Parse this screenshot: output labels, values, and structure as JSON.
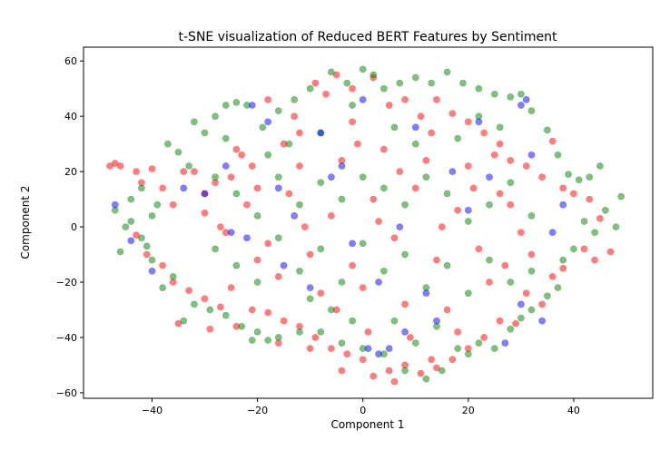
{
  "chart_data": {
    "type": "scatter",
    "title": "t-SNE visualization of Reduced BERT Features by Sentiment",
    "xlabel": "Component 1",
    "ylabel": "Component 2",
    "xlim": [
      -53,
      55
    ],
    "ylim": [
      -62,
      65
    ],
    "xticks": [
      -40,
      -20,
      0,
      20,
      40
    ],
    "yticks": [
      -60,
      -40,
      -20,
      0,
      20,
      40,
      60
    ],
    "grid": false,
    "legend": "none",
    "marker_alpha": 0.5,
    "series": [
      {
        "color": "#ff0000",
        "points": [
          [
            -48,
            22
          ],
          [
            -47,
            23
          ],
          [
            -46,
            22
          ],
          [
            -43,
            20
          ],
          [
            -42,
            16
          ],
          [
            -40,
            21
          ],
          [
            -38,
            14
          ],
          [
            -36,
            8
          ],
          [
            -34,
            20
          ],
          [
            -32,
            20
          ],
          [
            -30,
            12
          ],
          [
            -28,
            16
          ],
          [
            -25,
            18
          ],
          [
            -23,
            26
          ],
          [
            -21,
            22
          ],
          [
            -18,
            46
          ],
          [
            -15,
            30
          ],
          [
            -12,
            34
          ],
          [
            -9,
            52
          ],
          [
            -7,
            48
          ],
          [
            -5,
            55
          ],
          [
            -2,
            50
          ],
          [
            2,
            54
          ],
          [
            5,
            44
          ],
          [
            8,
            46
          ],
          [
            11,
            40
          ],
          [
            14,
            46
          ],
          [
            17,
            41
          ],
          [
            20,
            38
          ],
          [
            23,
            34
          ],
          [
            26,
            30
          ],
          [
            28,
            24
          ],
          [
            31,
            22
          ],
          [
            34,
            18
          ],
          [
            36,
            31
          ],
          [
            38,
            14
          ],
          [
            40,
            12
          ],
          [
            43,
            10
          ],
          [
            45,
            3
          ],
          [
            47,
            -9
          ],
          [
            44,
            -12
          ],
          [
            42,
            -8
          ],
          [
            38,
            -15
          ],
          [
            36,
            -18
          ],
          [
            34,
            -28
          ],
          [
            31,
            -24
          ],
          [
            29,
            -35
          ],
          [
            26,
            -34
          ],
          [
            23,
            -40
          ],
          [
            20,
            -44
          ],
          [
            17,
            -48
          ],
          [
            14,
            -51
          ],
          [
            11,
            -53
          ],
          [
            8,
            -50
          ],
          [
            5,
            -52
          ],
          [
            2,
            -54
          ],
          [
            0,
            -48
          ],
          [
            -3,
            -46
          ],
          [
            -6,
            -44
          ],
          [
            -9,
            -40
          ],
          [
            -12,
            -36
          ],
          [
            -15,
            -34
          ],
          [
            -18,
            -31
          ],
          [
            -21,
            -30
          ],
          [
            -24,
            -36
          ],
          [
            -27,
            -29
          ],
          [
            -30,
            -26
          ],
          [
            -33,
            -23
          ],
          [
            -36,
            -20
          ],
          [
            -38,
            -14
          ],
          [
            -41,
            -10
          ],
          [
            -43,
            -3
          ],
          [
            -35,
            -35
          ],
          [
            -29,
            -37
          ],
          [
            -16,
            -42
          ],
          [
            -10,
            -44
          ],
          [
            -4,
            -52
          ],
          [
            6,
            -56
          ],
          [
            13,
            -48
          ],
          [
            18,
            -38
          ],
          [
            -30,
            5
          ],
          [
            -26,
            -2
          ],
          [
            -22,
            8
          ],
          [
            -18,
            -6
          ],
          [
            -14,
            12
          ],
          [
            -10,
            -10
          ],
          [
            -6,
            4
          ],
          [
            -2,
            -14
          ],
          [
            2,
            10
          ],
          [
            6,
            -4
          ],
          [
            10,
            14
          ],
          [
            14,
            -12
          ],
          [
            18,
            6
          ],
          [
            22,
            -8
          ],
          [
            26,
            12
          ],
          [
            30,
            -2
          ],
          [
            -24,
            28
          ],
          [
            -20,
            14
          ],
          [
            -16,
            -18
          ],
          [
            -12,
            22
          ],
          [
            -8,
            -24
          ],
          [
            -4,
            24
          ],
          [
            0,
            -22
          ],
          [
            4,
            28
          ],
          [
            8,
            -28
          ],
          [
            12,
            24
          ],
          [
            16,
            -30
          ],
          [
            20,
            22
          ],
          [
            24,
            -20
          ],
          [
            28,
            8
          ],
          [
            32,
            -10
          ],
          [
            -2,
            38
          ],
          [
            3,
            2
          ],
          [
            -5,
            -30
          ],
          [
            7,
            20
          ],
          [
            -11,
            0
          ],
          [
            15,
            0
          ],
          [
            -20,
            -12
          ],
          [
            21,
            14
          ],
          [
            -27,
            0
          ],
          [
            27,
            -14
          ],
          [
            1,
            -38
          ],
          [
            -1,
            30
          ],
          [
            9,
            -40
          ],
          [
            -13,
            40
          ],
          [
            13,
            34
          ],
          [
            -25,
            -22
          ],
          [
            25,
            26
          ]
        ]
      },
      {
        "color": "#008000",
        "points": [
          [
            -47,
            6
          ],
          [
            -45,
            0
          ],
          [
            -46,
            -9
          ],
          [
            -44,
            10
          ],
          [
            -42,
            14
          ],
          [
            -40,
            4
          ],
          [
            -41,
            -7
          ],
          [
            -39,
            8
          ],
          [
            -37,
            30
          ],
          [
            -35,
            27
          ],
          [
            -33,
            22
          ],
          [
            -32,
            38
          ],
          [
            -30,
            34
          ],
          [
            -28,
            40
          ],
          [
            -26,
            44
          ],
          [
            -24,
            45
          ],
          [
            -22,
            44
          ],
          [
            -19,
            36
          ],
          [
            -16,
            42
          ],
          [
            -13,
            46
          ],
          [
            -10,
            50
          ],
          [
            -6,
            56
          ],
          [
            -3,
            52
          ],
          [
            0,
            57
          ],
          [
            2,
            55
          ],
          [
            4,
            50
          ],
          [
            7,
            52
          ],
          [
            10,
            54
          ],
          [
            13,
            52
          ],
          [
            16,
            56
          ],
          [
            19,
            52
          ],
          [
            22,
            50
          ],
          [
            25,
            48
          ],
          [
            28,
            47
          ],
          [
            30,
            48
          ],
          [
            32,
            42
          ],
          [
            35,
            35
          ],
          [
            37,
            26
          ],
          [
            39,
            19
          ],
          [
            41,
            17
          ],
          [
            43,
            18
          ],
          [
            45,
            22
          ],
          [
            46,
            6
          ],
          [
            48,
            0
          ],
          [
            49,
            11
          ],
          [
            44,
            -2
          ],
          [
            42,
            2
          ],
          [
            40,
            -8
          ],
          [
            38,
            -12
          ],
          [
            37,
            -22
          ],
          [
            35,
            -25
          ],
          [
            32,
            -30
          ],
          [
            30,
            -33
          ],
          [
            28,
            -37
          ],
          [
            25,
            -44
          ],
          [
            22,
            -42
          ],
          [
            18,
            -44
          ],
          [
            15,
            -52
          ],
          [
            12,
            -55
          ],
          [
            8,
            -52
          ],
          [
            4,
            -46
          ],
          [
            0,
            -44
          ],
          [
            -4,
            -42
          ],
          [
            -8,
            -38
          ],
          [
            -12,
            -38
          ],
          [
            -16,
            -40
          ],
          [
            -20,
            -38
          ],
          [
            -23,
            -36
          ],
          [
            -26,
            -32
          ],
          [
            -29,
            -30
          ],
          [
            -32,
            -28
          ],
          [
            -34,
            -34
          ],
          [
            -36,
            -18
          ],
          [
            -38,
            -22
          ],
          [
            -40,
            -12
          ],
          [
            -42,
            -4
          ],
          [
            -44,
            2
          ],
          [
            -21,
            -41
          ],
          [
            -18,
            -41
          ],
          [
            20,
            -46
          ],
          [
            -28,
            18
          ],
          [
            -24,
            12
          ],
          [
            -20,
            4
          ],
          [
            -16,
            18
          ],
          [
            -12,
            8
          ],
          [
            -8,
            16
          ],
          [
            -4,
            10
          ],
          [
            0,
            18
          ],
          [
            4,
            14
          ],
          [
            8,
            8
          ],
          [
            12,
            18
          ],
          [
            16,
            12
          ],
          [
            20,
            2
          ],
          [
            24,
            8
          ],
          [
            28,
            16
          ],
          [
            32,
            4
          ],
          [
            -28,
            -8
          ],
          [
            -24,
            -14
          ],
          [
            -20,
            -20
          ],
          [
            -16,
            -4
          ],
          [
            -12,
            -16
          ],
          [
            -8,
            -8
          ],
          [
            -4,
            -20
          ],
          [
            0,
            -6
          ],
          [
            4,
            -16
          ],
          [
            8,
            -10
          ],
          [
            12,
            -22
          ],
          [
            16,
            -14
          ],
          [
            20,
            -24
          ],
          [
            24,
            -12
          ],
          [
            28,
            -20
          ],
          [
            32,
            -16
          ],
          [
            -14,
            30
          ],
          [
            -8,
            34
          ],
          [
            -2,
            44
          ],
          [
            6,
            36
          ],
          [
            10,
            30
          ],
          [
            -18,
            26
          ],
          [
            18,
            32
          ],
          [
            22,
            40
          ],
          [
            -26,
            32
          ],
          [
            26,
            36
          ],
          [
            -6,
            -30
          ],
          [
            6,
            -34
          ],
          [
            -10,
            -26
          ],
          [
            10,
            -42
          ],
          [
            14,
            -36
          ],
          [
            -2,
            -34
          ]
        ]
      },
      {
        "color": "#0000ff",
        "points": [
          [
            -47,
            8
          ],
          [
            -44,
            -5
          ],
          [
            -40,
            -16
          ],
          [
            -34,
            14
          ],
          [
            -30,
            12
          ],
          [
            -26,
            22
          ],
          [
            -21,
            44
          ],
          [
            -18,
            38
          ],
          [
            -16,
            14
          ],
          [
            -13,
            4
          ],
          [
            -10,
            -22
          ],
          [
            -8,
            34
          ],
          [
            -6,
            18
          ],
          [
            -4,
            22
          ],
          [
            -2,
            -6
          ],
          [
            1,
            -44
          ],
          [
            3,
            -46
          ],
          [
            5,
            -44
          ],
          [
            7,
            0
          ],
          [
            10,
            36
          ],
          [
            12,
            -24
          ],
          [
            14,
            -34
          ],
          [
            17,
            20
          ],
          [
            20,
            6
          ],
          [
            22,
            38
          ],
          [
            24,
            18
          ],
          [
            27,
            -42
          ],
          [
            30,
            -28
          ],
          [
            32,
            26
          ],
          [
            34,
            -34
          ],
          [
            36,
            -2
          ],
          [
            38,
            8
          ],
          [
            30,
            44
          ],
          [
            31,
            46
          ],
          [
            -25,
            -2
          ],
          [
            -22,
            -4
          ],
          [
            3,
            -20
          ],
          [
            -15,
            -14
          ],
          [
            0,
            46
          ],
          [
            8,
            -38
          ]
        ]
      }
    ]
  }
}
